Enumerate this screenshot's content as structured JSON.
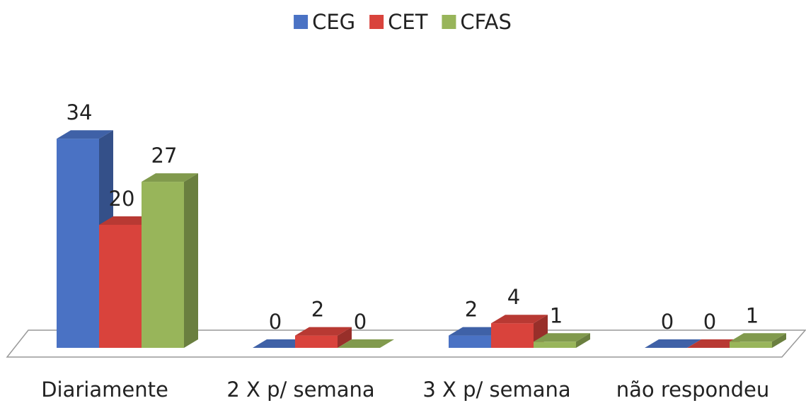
{
  "chart_data": {
    "type": "bar3d",
    "categories": [
      "Diariamente",
      "2 X p/ semana",
      "3 X p/ semana",
      "não respondeu"
    ],
    "series": [
      {
        "name": "CEG",
        "color": "#4a72c4",
        "values": [
          34,
          0,
          2,
          0
        ]
      },
      {
        "name": "CET",
        "color": "#d9433c",
        "values": [
          20,
          2,
          4,
          0
        ]
      },
      {
        "name": "CFAS",
        "color": "#98b55a",
        "values": [
          27,
          0,
          1,
          1
        ]
      }
    ],
    "legend": "top"
  }
}
